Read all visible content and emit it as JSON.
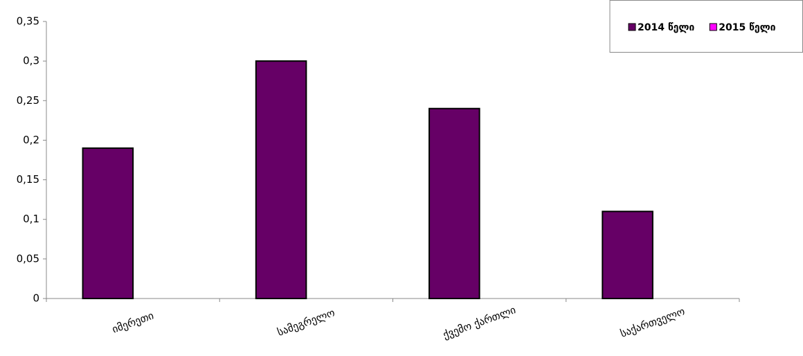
{
  "chart_data": {
    "type": "bar",
    "categories": [
      "იმერეთი",
      "სამეგრელო",
      "ქვემო ქართლი",
      "საქართველო"
    ],
    "series": [
      {
        "name": "2014 წელი",
        "color": "#660066",
        "values": [
          0.19,
          0.3,
          0.24,
          0.11
        ]
      },
      {
        "name": "2015 წელი",
        "color": "#ff00ff",
        "values": [
          null,
          null,
          null,
          null
        ]
      }
    ],
    "ylim": [
      0,
      0.35
    ],
    "yticks": [
      0,
      {
        "value": 0.05,
        "label": "0,05"
      },
      {
        "value": 0.1,
        "label": "0,1"
      },
      {
        "value": 0.15,
        "label": "0,15"
      },
      {
        "value": 0.2,
        "label": "0,2"
      },
      {
        "value": 0.25,
        "label": "0,25"
      },
      {
        "value": 0.3,
        "label": "0,3"
      },
      {
        "value": 0.35,
        "label": "0,35"
      }
    ],
    "grid": false,
    "legend": "top-right"
  }
}
